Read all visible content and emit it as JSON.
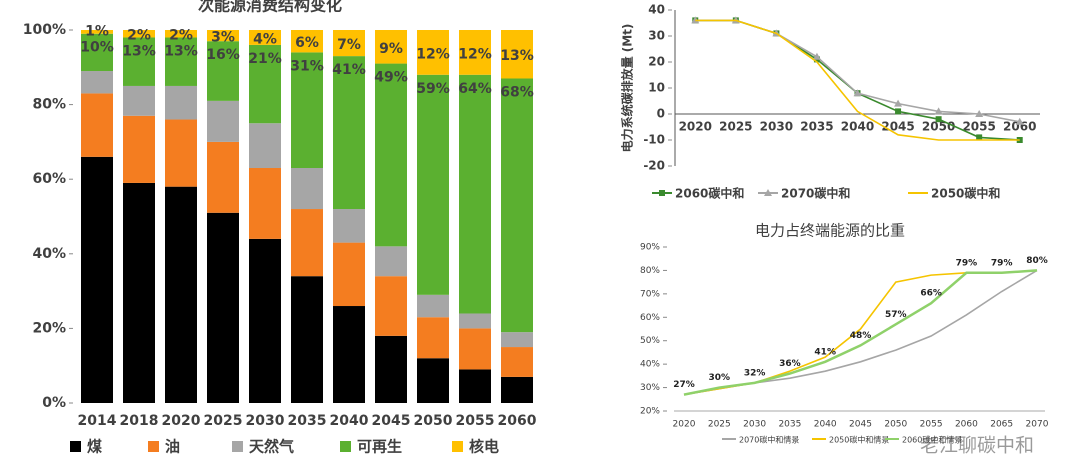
{
  "chart_data": [
    {
      "type": "bar",
      "stacked": true,
      "title": "次能源消费结构变化",
      "categories": [
        "2014",
        "2018",
        "2020",
        "2025",
        "2030",
        "2035",
        "2040",
        "2045",
        "2050",
        "2055",
        "2060"
      ],
      "ylim": [
        0,
        100
      ],
      "yticks": [
        {
          "value": 0,
          "label": "0%"
        },
        {
          "value": 20,
          "label": "20%"
        },
        {
          "value": 40,
          "label": "40%"
        },
        {
          "value": 60,
          "label": "60%"
        },
        {
          "value": 80,
          "label": "80%"
        },
        {
          "value": 100,
          "label": "100%"
        }
      ],
      "series": [
        {
          "name": "煤",
          "color": "#000000",
          "values": [
            66,
            59,
            58,
            51,
            44,
            34,
            26,
            18,
            12,
            9,
            7
          ]
        },
        {
          "name": "油",
          "color": "#f47d20",
          "values": [
            17,
            18,
            18,
            19,
            19,
            18,
            17,
            16,
            11,
            11,
            8
          ]
        },
        {
          "name": "天然气",
          "color": "#a6a6a6",
          "values": [
            6,
            8,
            9,
            11,
            12,
            11,
            9,
            8,
            6,
            4,
            4
          ]
        },
        {
          "name": "可再生",
          "color": "#5bb030",
          "values": [
            10,
            13,
            13,
            16,
            21,
            31,
            41,
            49,
            59,
            64,
            68
          ],
          "value_labels": [
            "10%",
            "13%",
            "13%",
            "16%",
            "21%",
            "31%",
            "41%",
            "49%",
            "59%",
            "64%",
            "68%"
          ]
        },
        {
          "name": "核电",
          "color": "#ffc000",
          "values": [
            1,
            2,
            2,
            3,
            4,
            6,
            7,
            9,
            12,
            12,
            13
          ],
          "value_labels": [
            "1%",
            "2%",
            "2%",
            "3%",
            "4%",
            "6%",
            "7%",
            "9%",
            "12%",
            "12%",
            "13%"
          ]
        }
      ]
    },
    {
      "type": "line",
      "ylabel": "电力系统碳排放量 (Mt)",
      "categories": [
        "2020",
        "2025",
        "2030",
        "2035",
        "2040",
        "2045",
        "2050",
        "2055",
        "2060"
      ],
      "ylim": [
        -20,
        40
      ],
      "yticks": [
        -20,
        -10,
        0,
        10,
        20,
        30,
        40
      ],
      "series": [
        {
          "name": "2060碳中和",
          "color": "#3a8a2e",
          "marker": "square",
          "values": [
            36,
            36,
            31,
            21,
            8,
            1,
            -2,
            -9,
            -10
          ]
        },
        {
          "name": "2070碳中和",
          "color": "#a6a6a6",
          "marker": "triangle",
          "values": [
            36,
            36,
            31,
            22,
            8,
            4,
            1,
            0,
            -3
          ]
        },
        {
          "name": "2050碳中和",
          "color": "#f5c400",
          "values": [
            36,
            36,
            31,
            20,
            1,
            -8,
            -10,
            -10,
            -10
          ]
        }
      ]
    },
    {
      "type": "line",
      "title": "电力占终端能源的比重",
      "categories": [
        "2020",
        "2025",
        "2030",
        "2035",
        "2040",
        "2045",
        "2050",
        "2055",
        "2060",
        "2065",
        "2070"
      ],
      "ylim": [
        20,
        90
      ],
      "yticks": [
        {
          "value": 20,
          "label": "20%"
        },
        {
          "value": 30,
          "label": "30%"
        },
        {
          "value": 40,
          "label": "40%"
        },
        {
          "value": 50,
          "label": "50%"
        },
        {
          "value": 60,
          "label": "60%"
        },
        {
          "value": 70,
          "label": "70%"
        },
        {
          "value": 80,
          "label": "80%"
        },
        {
          "value": 90,
          "label": "90%"
        }
      ],
      "series": [
        {
          "name": "2070碳中和情景",
          "color": "#a6a6a6",
          "values": [
            27,
            29.5,
            32,
            34,
            37,
            41,
            46,
            52,
            61,
            71,
            80
          ]
        },
        {
          "name": "2050碳中和情景",
          "color": "#f5c400",
          "values": [
            27,
            29.5,
            32,
            37,
            43,
            55,
            75,
            78,
            79,
            79,
            80
          ]
        },
        {
          "name": "2060碳中和情景",
          "color": "#8fd16a",
          "values": [
            27,
            30,
            32,
            36,
            41,
            48,
            57,
            66,
            79,
            79,
            80
          ],
          "value_labels": [
            "27%",
            "30%",
            "32%",
            "36%",
            "41%",
            "48%",
            "57%",
            "66%",
            "79%",
            "79%",
            "80%"
          ]
        }
      ]
    }
  ],
  "watermark": "老江聊碳中和"
}
